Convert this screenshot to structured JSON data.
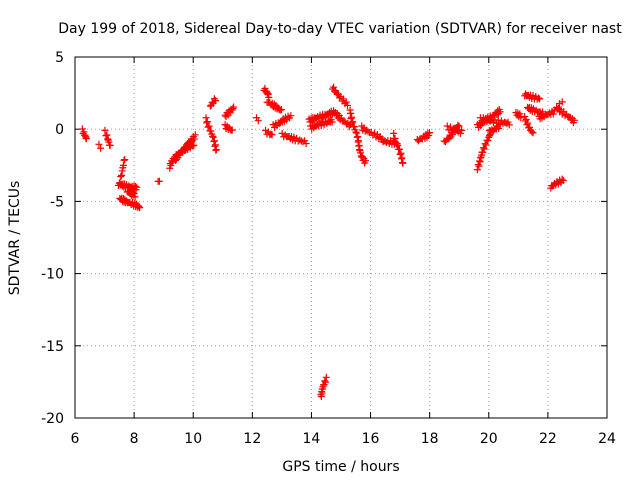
{
  "chart_data": {
    "type": "scatter",
    "title": "Day 199 of 2018, Sidereal Day-to-day VTEC variation (SDTVAR) for receiver nast",
    "xlabel": "GPS time / hours",
    "ylabel": "SDTVAR / TECUs",
    "xlim": [
      6,
      24
    ],
    "ylim": [
      -20,
      5
    ],
    "xticks": [
      "6",
      "8",
      "10",
      "12",
      "14",
      "16",
      "18",
      "20",
      "22",
      "24"
    ],
    "yticks": [
      "5",
      "0",
      "-5",
      "-10",
      "-15",
      "-20"
    ],
    "xtick_values": [
      6,
      8,
      10,
      12,
      14,
      16,
      18,
      20,
      22,
      24
    ],
    "ytick_values": [
      5,
      0,
      -5,
      -10,
      -15,
      -20
    ],
    "grid": true,
    "marker": "+",
    "color": "#ff0000",
    "segments": [
      {
        "x": [
          6.25,
          6.38
        ],
        "y": [
          -0.1,
          -0.7
        ],
        "n": 8
      },
      {
        "x": [
          6.8,
          6.85
        ],
        "y": [
          -1.1,
          -1.3
        ],
        "n": 2
      },
      {
        "x": [
          7.0,
          7.2
        ],
        "y": [
          -0.2,
          -1.2
        ],
        "n": 8
      },
      {
        "x": [
          7.5,
          7.7
        ],
        "y": [
          -3.6,
          -2.0
        ],
        "n": 8
      },
      {
        "x": [
          7.45,
          8.1
        ],
        "y": [
          -3.8,
          -4.1
        ],
        "n": 22
      },
      {
        "x": [
          7.5,
          8.2
        ],
        "y": [
          -4.8,
          -5.4
        ],
        "n": 22
      },
      {
        "x": [
          7.75,
          8.05
        ],
        "y": [
          -4.3,
          -4.6
        ],
        "n": 10
      },
      {
        "x": [
          8.8,
          8.85
        ],
        "y": [
          -3.5,
          -3.7
        ],
        "n": 2
      },
      {
        "x": [
          9.2,
          9.45
        ],
        "y": [
          -2.6,
          -1.7
        ],
        "n": 10
      },
      {
        "x": [
          9.4,
          10.05
        ],
        "y": [
          -2.1,
          -0.5
        ],
        "n": 26
      },
      {
        "x": [
          9.6,
          10.0
        ],
        "y": [
          -1.5,
          -1.1
        ],
        "n": 12
      },
      {
        "x": [
          10.45,
          10.8
        ],
        "y": [
          0.7,
          -1.5
        ],
        "n": 16
      },
      {
        "x": [
          10.6,
          10.75
        ],
        "y": [
          1.6,
          2.1
        ],
        "n": 6
      },
      {
        "x": [
          11.1,
          11.35
        ],
        "y": [
          0.9,
          1.5
        ],
        "n": 10
      },
      {
        "x": [
          11.1,
          11.3
        ],
        "y": [
          0.2,
          -0.1
        ],
        "n": 8
      },
      {
        "x": [
          12.15,
          12.2
        ],
        "y": [
          0.7,
          0.7
        ],
        "n": 2
      },
      {
        "x": [
          12.4,
          12.55
        ],
        "y": [
          2.8,
          2.3
        ],
        "n": 8
      },
      {
        "x": [
          12.5,
          13.0
        ],
        "y": [
          1.9,
          1.3
        ],
        "n": 14
      },
      {
        "x": [
          12.45,
          12.65
        ],
        "y": [
          -0.2,
          -0.4
        ],
        "n": 6
      },
      {
        "x": [
          12.7,
          13.3
        ],
        "y": [
          0.2,
          0.9
        ],
        "n": 16
      },
      {
        "x": [
          13.0,
          13.8
        ],
        "y": [
          -0.4,
          -0.9
        ],
        "n": 18
      },
      {
        "x": [
          13.9,
          14.8
        ],
        "y": [
          0.6,
          1.2
        ],
        "n": 26
      },
      {
        "x": [
          13.95,
          14.7
        ],
        "y": [
          0.1,
          0.6
        ],
        "n": 20
      },
      {
        "x": [
          14.3,
          14.5
        ],
        "y": [
          -18.5,
          -17.3
        ],
        "n": 12
      },
      {
        "x": [
          14.7,
          15.2
        ],
        "y": [
          2.9,
          1.7
        ],
        "n": 14
      },
      {
        "x": [
          14.8,
          15.3
        ],
        "y": [
          1.1,
          0.2
        ],
        "n": 14
      },
      {
        "x": [
          15.3,
          15.7
        ],
        "y": [
          1.3,
          -1.8
        ],
        "n": 22
      },
      {
        "x": [
          15.7,
          15.85
        ],
        "y": [
          -1.9,
          -2.3
        ],
        "n": 6
      },
      {
        "x": [
          15.7,
          16.4
        ],
        "y": [
          0.1,
          -0.7
        ],
        "n": 16
      },
      {
        "x": [
          16.4,
          16.9
        ],
        "y": [
          -0.8,
          -1.0
        ],
        "n": 14
      },
      {
        "x": [
          16.8,
          17.1
        ],
        "y": [
          -0.4,
          -2.4
        ],
        "n": 14
      },
      {
        "x": [
          17.6,
          18.0
        ],
        "y": [
          -0.8,
          -0.3
        ],
        "n": 12
      },
      {
        "x": [
          18.5,
          19.0
        ],
        "y": [
          -0.9,
          0.3
        ],
        "n": 16
      },
      {
        "x": [
          18.6,
          19.1
        ],
        "y": [
          0.1,
          -0.2
        ],
        "n": 12
      },
      {
        "x": [
          19.6,
          20.05
        ],
        "y": [
          -2.7,
          -0.2
        ],
        "n": 20
      },
      {
        "x": [
          19.6,
          20.4
        ],
        "y": [
          0.2,
          1.3
        ],
        "n": 24
      },
      {
        "x": [
          19.7,
          20.7
        ],
        "y": [
          0.7,
          0.4
        ],
        "n": 22
      },
      {
        "x": [
          20.0,
          20.4
        ],
        "y": [
          -0.2,
          0.2
        ],
        "n": 10
      },
      {
        "x": [
          20.9,
          21.1
        ],
        "y": [
          1.1,
          0.9
        ],
        "n": 6
      },
      {
        "x": [
          21.2,
          21.7
        ],
        "y": [
          2.4,
          2.1
        ],
        "n": 14
      },
      {
        "x": [
          21.2,
          21.5
        ],
        "y": [
          0.8,
          -0.3
        ],
        "n": 10
      },
      {
        "x": [
          21.3,
          21.8
        ],
        "y": [
          1.5,
          1.1
        ],
        "n": 14
      },
      {
        "x": [
          21.7,
          22.2
        ],
        "y": [
          0.8,
          1.2
        ],
        "n": 14
      },
      {
        "x": [
          22.1,
          22.5
        ],
        "y": [
          -4.0,
          -3.5
        ],
        "n": 12
      },
      {
        "x": [
          22.3,
          22.9
        ],
        "y": [
          1.5,
          0.5
        ],
        "n": 16
      },
      {
        "x": [
          22.4,
          22.5
        ],
        "y": [
          1.8,
          1.9
        ],
        "n": 2
      }
    ]
  }
}
